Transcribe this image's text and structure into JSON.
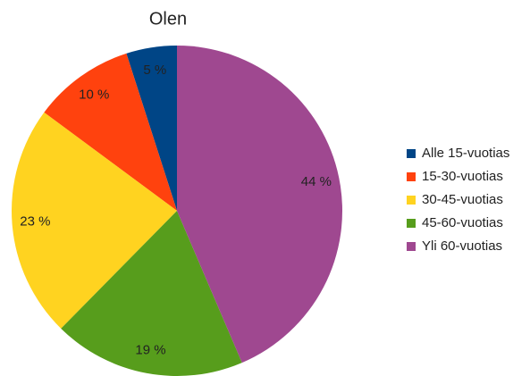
{
  "chart_data": {
    "type": "pie",
    "title": "Olen",
    "categories": [
      "Alle 15-vuotias",
      "15-30-vuotias",
      "30-45-vuotias",
      "45-60-vuotias",
      "Yli 60-vuotias"
    ],
    "values": [
      5,
      10,
      23,
      19,
      44
    ],
    "value_labels": [
      "5 %",
      "10 %",
      "23 %",
      "19 %",
      "44 %"
    ],
    "colors": [
      "#004586",
      "#ff420e",
      "#ffd320",
      "#579d1c",
      "#9f4890"
    ],
    "legend": "right"
  }
}
